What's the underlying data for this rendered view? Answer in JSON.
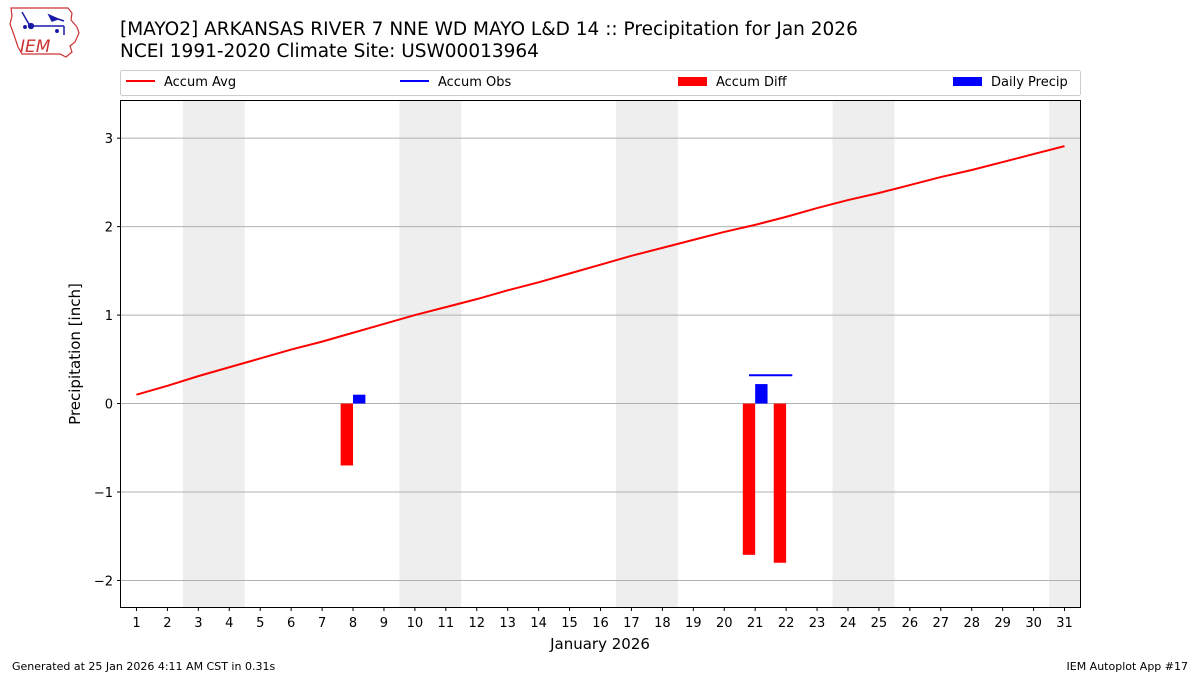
{
  "logo": {
    "text": "IEM"
  },
  "chart_data": {
    "type": "bar",
    "title": "[MAYO2] ARKANSAS RIVER 7 NNE WD MAYO L&D 14 :: Precipitation for Jan 2026",
    "subtitle": "NCEI 1991-2020 Climate Site: USW00013964",
    "xlabel": "January 2026",
    "ylabel": "Precipitation [inch]",
    "xlim": [
      0.5,
      31.5
    ],
    "ylim": [
      -2.3,
      3.42
    ],
    "x_ticks": [
      1,
      2,
      3,
      4,
      5,
      6,
      7,
      8,
      9,
      10,
      11,
      12,
      13,
      14,
      15,
      16,
      17,
      18,
      19,
      20,
      21,
      22,
      23,
      24,
      25,
      26,
      27,
      28,
      29,
      30,
      31
    ],
    "y_ticks": [
      -2,
      -1,
      0,
      1,
      2,
      3
    ],
    "y_tick_labels": [
      "−2",
      "−1",
      "0",
      "1",
      "2",
      "3"
    ],
    "grid": true,
    "legend_position": "top",
    "weekend_shading": [
      [
        2.5,
        4.5
      ],
      [
        9.5,
        11.5
      ],
      [
        16.5,
        18.5
      ],
      [
        23.5,
        25.5
      ],
      [
        30.5,
        31.5
      ]
    ],
    "legend": [
      {
        "label": "Accum Avg",
        "kind": "line",
        "color": "#ff0000"
      },
      {
        "label": "Accum Obs",
        "kind": "line",
        "color": "#0000ff"
      },
      {
        "label": "Accum Diff",
        "kind": "bar",
        "color": "#ff0000"
      },
      {
        "label": "Daily Precip",
        "kind": "bar",
        "color": "#0000ff"
      }
    ],
    "series": [
      {
        "name": "Accum Avg",
        "kind": "line",
        "color": "#ff0000",
        "x": [
          1,
          2,
          3,
          4,
          5,
          6,
          7,
          8,
          9,
          10,
          11,
          12,
          13,
          14,
          15,
          16,
          17,
          18,
          19,
          20,
          21,
          22,
          23,
          24,
          25,
          26,
          27,
          28,
          29,
          30,
          31
        ],
        "values": [
          0.1,
          0.2,
          0.31,
          0.41,
          0.51,
          0.61,
          0.7,
          0.8,
          0.9,
          1.0,
          1.09,
          1.18,
          1.28,
          1.37,
          1.47,
          1.57,
          1.67,
          1.76,
          1.85,
          1.94,
          2.02,
          2.11,
          2.21,
          2.3,
          2.38,
          2.47,
          2.56,
          2.64,
          2.73,
          2.82,
          2.91
        ]
      },
      {
        "name": "Accum Obs",
        "kind": "step",
        "color": "#0000ff",
        "x": [
          21,
          22
        ],
        "values": [
          0.32,
          0.32
        ]
      },
      {
        "name": "Accum Diff",
        "kind": "bar",
        "color": "#ff0000",
        "x": [
          8,
          21,
          22
        ],
        "values": [
          -0.7,
          -1.71,
          -1.8
        ]
      },
      {
        "name": "Daily Precip",
        "kind": "bar",
        "color": "#0000ff",
        "x": [
          8,
          21
        ],
        "values": [
          0.1,
          0.22
        ]
      }
    ]
  },
  "footer": {
    "left": "Generated at 25 Jan 2026 4:11 AM CST in 0.31s",
    "right": "IEM Autoplot App #17"
  }
}
